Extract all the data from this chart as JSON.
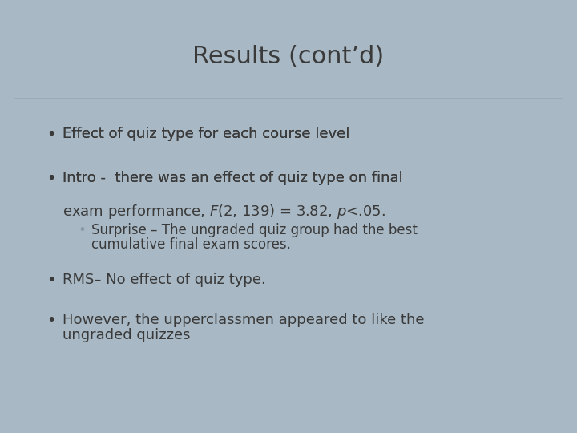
{
  "title": "Results (cont’d)",
  "title_fontsize": 22,
  "title_color": "#3a3a3a",
  "background_color": "#a8b8c4",
  "slide_bg": "#e4e8ec",
  "header_bg": "#d8dde2",
  "border_color": "#9aaab4",
  "bullet1": "Effect of quiz type for each course level",
  "bullet2_line1": "Intro -  there was an effect of quiz type on final",
  "bullet3": "RMS– No effect of quiz type.",
  "bullet4_line1": "However, the upperclassmen appeared to like the",
  "bullet4_line2": "ungraded quizzes",
  "text_color": "#3a3a3a",
  "sub_bullet_color": "#8a9ba8",
  "body_fontsize": 13,
  "sub_fontsize": 12
}
